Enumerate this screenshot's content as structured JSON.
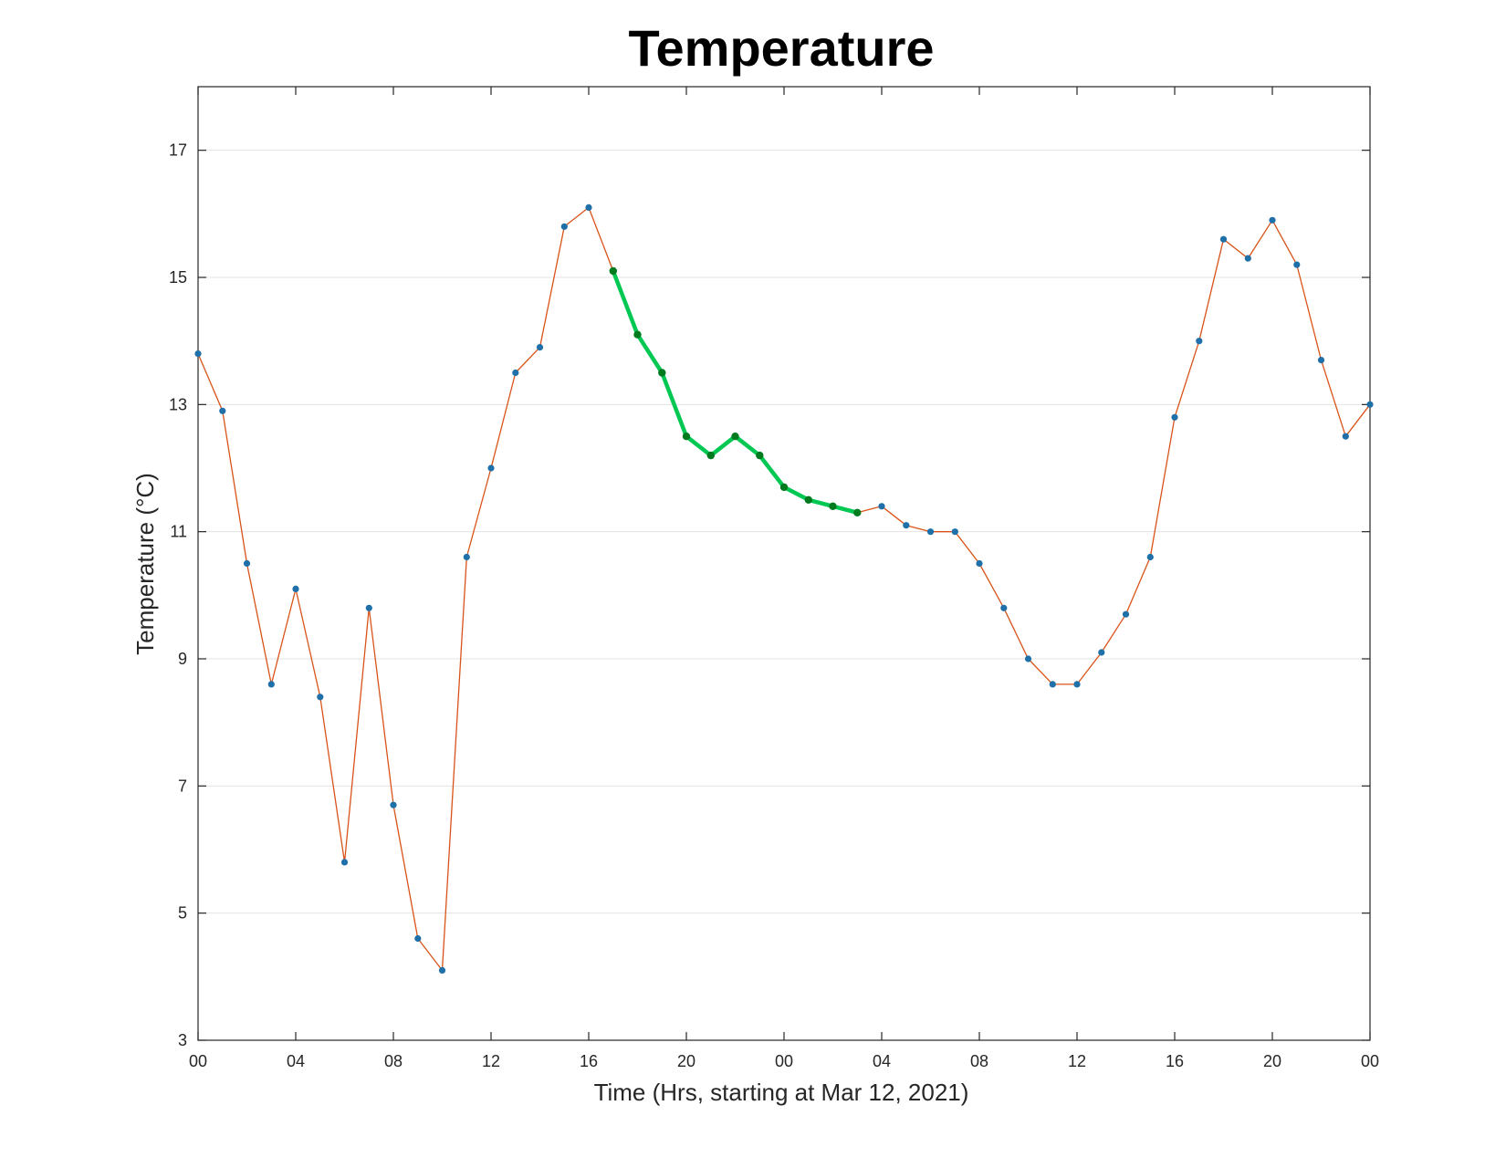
{
  "chart_data": {
    "type": "line",
    "title": "Temperature",
    "xlabel": "Time (Hrs, starting at Mar 12, 2021)",
    "ylabel": "Temperature (°C)",
    "x_unit": "hour",
    "x_start": "2021-03-12 00:00",
    "x_end": "2021-03-14 00:00",
    "xlim": [
      "2021-03-12 00:00",
      "2021-03-14 00:00"
    ],
    "ylim": [
      3,
      18
    ],
    "xticks": [
      "2021-03-12 00:00",
      "2021-03-12 04:00",
      "2021-03-12 08:00",
      "2021-03-12 12:00",
      "2021-03-12 16:00",
      "2021-03-12 20:00",
      "2021-03-13 00:00",
      "2021-03-13 04:00",
      "2021-03-13 08:00",
      "2021-03-13 12:00",
      "2021-03-13 16:00",
      "2021-03-13 20:00",
      "2021-03-14 00:00"
    ],
    "xtick_labels": [
      "00",
      "04",
      "08",
      "12",
      "16",
      "20",
      "00",
      "04",
      "08",
      "12",
      "16",
      "20",
      "00"
    ],
    "yticks": [
      3,
      5,
      7,
      9,
      11,
      13,
      15,
      17
    ],
    "ytick_labels": [
      "3",
      "5",
      "7",
      "9",
      "11",
      "13",
      "15",
      "17"
    ],
    "grid": "horizontal",
    "colors": {
      "line": "#d95319",
      "marker": "#1f6fa8",
      "highlight_line": "#00c853",
      "highlight_marker": "#007a1f",
      "grid": "#e3e3e3",
      "axis": "#262626"
    },
    "series": [
      {
        "role": "all",
        "x": [
          "2021-03-12 00:00",
          "2021-03-12 01:00",
          "2021-03-12 02:00",
          "2021-03-12 03:00",
          "2021-03-12 04:00",
          "2021-03-12 05:00",
          "2021-03-12 06:00",
          "2021-03-12 07:00",
          "2021-03-12 08:00",
          "2021-03-12 09:00",
          "2021-03-12 10:00",
          "2021-03-12 11:00",
          "2021-03-12 12:00",
          "2021-03-12 13:00",
          "2021-03-12 14:00",
          "2021-03-12 15:00",
          "2021-03-12 16:00",
          "2021-03-12 17:00",
          "2021-03-12 18:00",
          "2021-03-12 19:00",
          "2021-03-12 20:00",
          "2021-03-12 21:00",
          "2021-03-12 22:00",
          "2021-03-12 23:00",
          "2021-03-13 00:00",
          "2021-03-13 01:00",
          "2021-03-13 02:00",
          "2021-03-13 03:00",
          "2021-03-13 04:00",
          "2021-03-13 05:00",
          "2021-03-13 06:00",
          "2021-03-13 07:00",
          "2021-03-13 08:00",
          "2021-03-13 09:00",
          "2021-03-13 10:00",
          "2021-03-13 11:00",
          "2021-03-13 12:00",
          "2021-03-13 13:00",
          "2021-03-13 14:00",
          "2021-03-13 15:00",
          "2021-03-13 16:00",
          "2021-03-13 17:00",
          "2021-03-13 18:00",
          "2021-03-13 19:00",
          "2021-03-13 20:00",
          "2021-03-13 21:00",
          "2021-03-13 22:00",
          "2021-03-13 23:00",
          "2021-03-14 00:00"
        ],
        "values": [
          13.8,
          12.9,
          10.5,
          8.6,
          10.1,
          8.4,
          5.8,
          9.8,
          6.7,
          4.6,
          4.1,
          10.6,
          12.0,
          13.5,
          13.9,
          15.8,
          16.1,
          15.1,
          14.1,
          13.5,
          12.5,
          12.2,
          12.5,
          12.2,
          11.7,
          11.5,
          11.4,
          11.3,
          11.4,
          11.1,
          11.0,
          11.0,
          10.5,
          9.8,
          9.0,
          8.6,
          8.6,
          9.1,
          9.7,
          10.6,
          12.8,
          14.0,
          15.6,
          15.3,
          15.9,
          15.2,
          13.7,
          12.5,
          13.0
        ]
      },
      {
        "role": "highlight",
        "x": [
          "2021-03-12 17:00",
          "2021-03-12 18:00",
          "2021-03-12 19:00",
          "2021-03-12 20:00",
          "2021-03-12 21:00",
          "2021-03-12 22:00",
          "2021-03-12 23:00",
          "2021-03-13 00:00",
          "2021-03-13 01:00",
          "2021-03-13 02:00",
          "2021-03-13 03:00"
        ],
        "values": [
          15.1,
          14.1,
          13.5,
          12.5,
          12.2,
          12.5,
          12.2,
          11.7,
          11.5,
          11.4,
          11.3
        ]
      }
    ]
  }
}
